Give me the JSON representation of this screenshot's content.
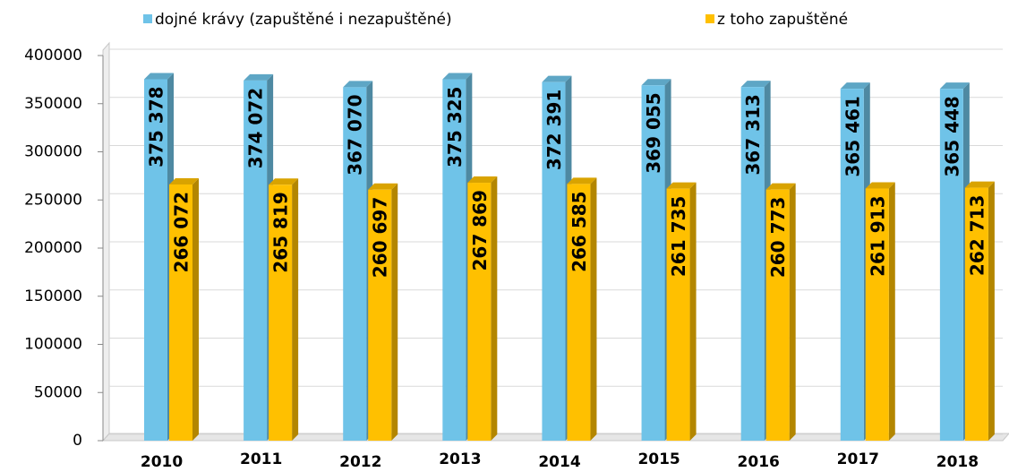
{
  "chart_data": {
    "type": "bar",
    "categories": [
      "2010",
      "2011",
      "2012",
      "2013",
      "2014",
      "2015",
      "2016",
      "2017",
      "2018"
    ],
    "series": [
      {
        "name": "dojné krávy (zapuštěné i nezapuštěné)",
        "color": "#6fc3e8",
        "values": [
          375378,
          374072,
          367070,
          375325,
          372391,
          369055,
          367313,
          365461,
          365448
        ],
        "value_labels": [
          "375 378",
          "374 072",
          "367 070",
          "375 325",
          "372 391",
          "369 055",
          "367 313",
          "365 461",
          "365 448"
        ]
      },
      {
        "name": "z toho zapuštěné",
        "color": "#ffc000",
        "values": [
          266072,
          265819,
          260697,
          267869,
          266585,
          261735,
          260773,
          261913,
          262713
        ],
        "value_labels": [
          "266 072",
          "265 819",
          "260 697",
          "267 869",
          "266 585",
          "261 735",
          "260 773",
          "261 913",
          "262 713"
        ]
      }
    ],
    "ylim": [
      0,
      400000
    ],
    "yticks": [
      0,
      50000,
      100000,
      150000,
      200000,
      250000,
      300000,
      350000,
      400000
    ],
    "grid": true,
    "legend": "top"
  }
}
